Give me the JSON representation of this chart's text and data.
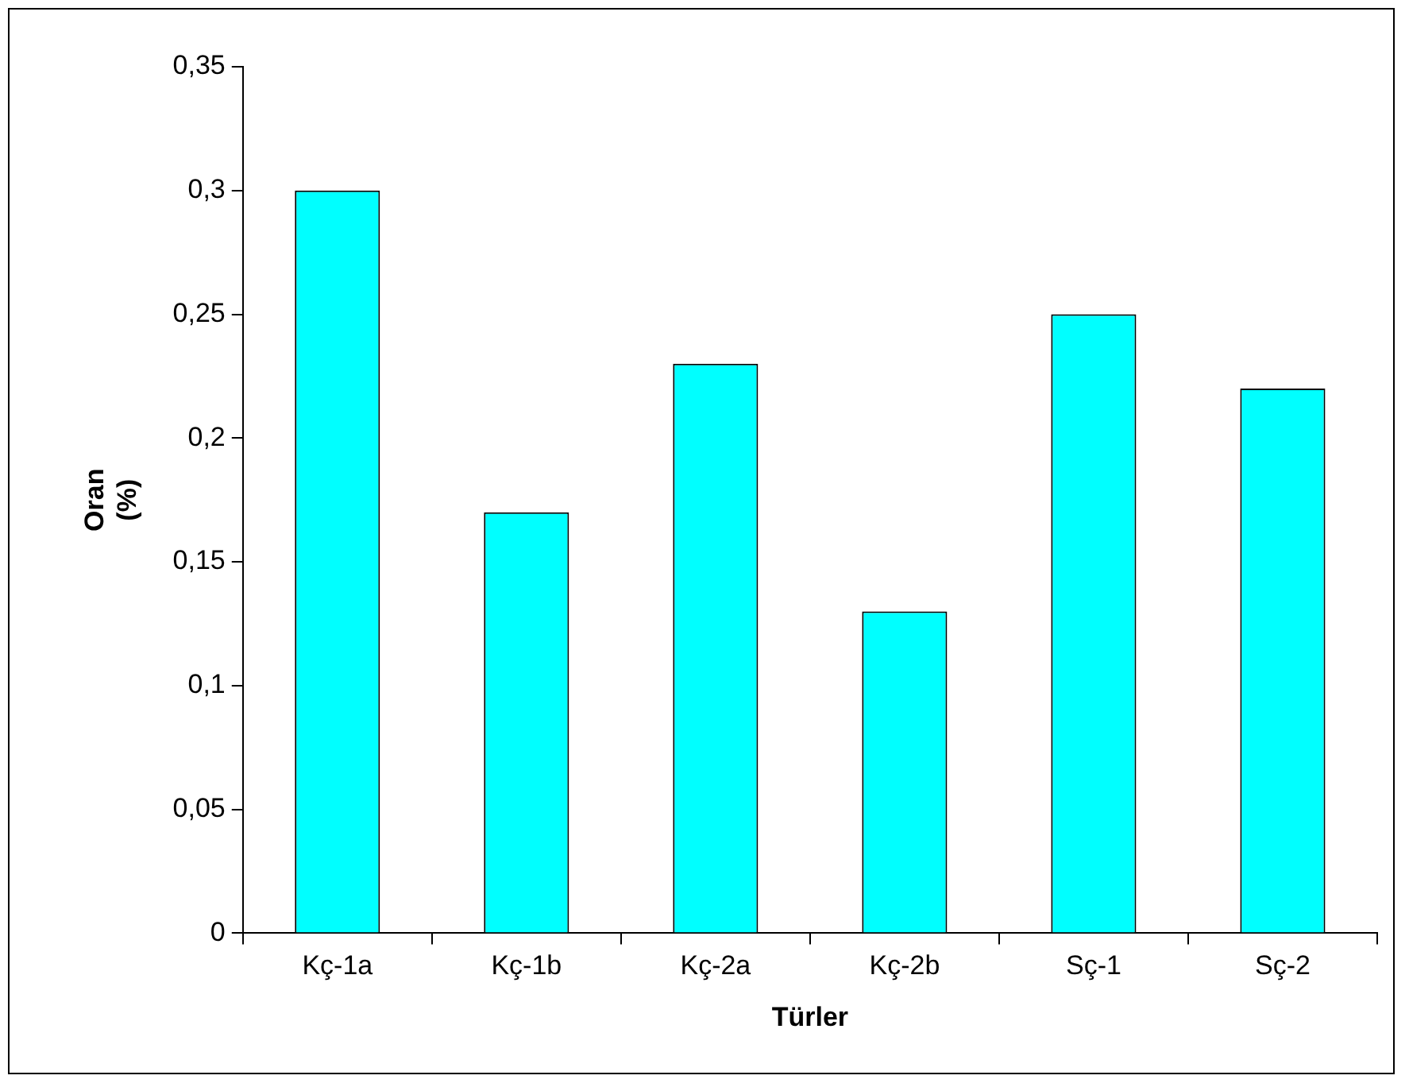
{
  "chart_data": {
    "type": "bar",
    "xlabel": "Türler",
    "ylabel": "Oran\n(%)",
    "categories": [
      "Kç-1a",
      "Kç-1b",
      "Kç-2a",
      "Kç-2b",
      "Sç-1",
      "Sç-2"
    ],
    "values": [
      0.3,
      0.17,
      0.23,
      0.13,
      0.25,
      0.22
    ],
    "color": "#00ffff",
    "ylim": [
      0,
      0.35
    ],
    "yticks": [
      {
        "value": 0,
        "label": "0"
      },
      {
        "value": 0.05,
        "label": "0,05"
      },
      {
        "value": 0.1,
        "label": "0,1"
      },
      {
        "value": 0.15,
        "label": "0,15"
      },
      {
        "value": 0.2,
        "label": "0,2"
      },
      {
        "value": 0.25,
        "label": "0,25"
      },
      {
        "value": 0.3,
        "label": "0,3"
      },
      {
        "value": 0.35,
        "label": "0,35"
      }
    ],
    "grid": false,
    "legend": false
  }
}
